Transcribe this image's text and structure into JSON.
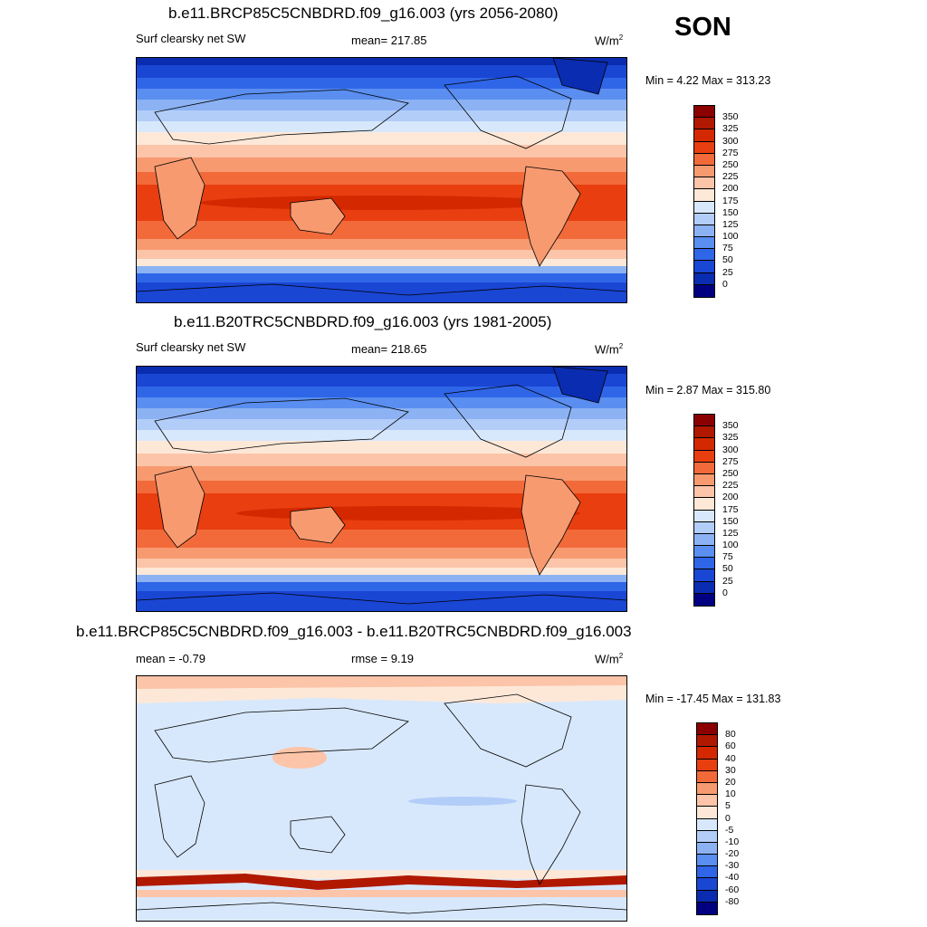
{
  "season": "SON",
  "panels": [
    {
      "title": "b.e11.BRCP85C5CNBDRD.f09_g16.003 (yrs 2056-2080)",
      "variable": "Surf clearsky net SW",
      "stat": "mean= 217.85",
      "units": "W/m",
      "units_exp": "2",
      "minmax": "Min =   4.22 Max = 313.23"
    },
    {
      "title": "b.e11.B20TRC5CNBDRD.f09_g16.003 (yrs 1981-2005)",
      "variable": "Surf clearsky net SW",
      "stat": "mean= 218.65",
      "units": "W/m",
      "units_exp": "2",
      "minmax": "Min =   2.87 Max = 315.80"
    },
    {
      "title": "b.e11.BRCP85C5CNBDRD.f09_g16.003 - b.e11.B20TRC5CNBDRD.f09_g16.003",
      "mean_label": "mean =  -0.79",
      "rmse_label": "rmse =   9.19",
      "units": "W/m",
      "units_exp": "2",
      "minmax": "Min = -17.45 Max = 131.83"
    }
  ],
  "colorbar_abs": {
    "labels": [
      "350",
      "325",
      "300",
      "275",
      "250",
      "225",
      "200",
      "175",
      "150",
      "125",
      "100",
      "75",
      "50",
      "25",
      "0"
    ],
    "colors": [
      "#8b0000",
      "#b01800",
      "#d42800",
      "#e83e10",
      "#f26a3a",
      "#f89a70",
      "#fcc4a8",
      "#fde8d8",
      "#d8e8fc",
      "#b2cdf8",
      "#8cb2f4",
      "#5a8ef0",
      "#2f66e8",
      "#1a46d4",
      "#0a2cb0",
      "#000080"
    ]
  },
  "colorbar_diff": {
    "labels": [
      "80",
      "60",
      "40",
      "30",
      "20",
      "10",
      "5",
      "0",
      "-5",
      "-10",
      "-20",
      "-30",
      "-40",
      "-60",
      "-80"
    ],
    "colors": [
      "#8b0000",
      "#b01800",
      "#d42800",
      "#e83e10",
      "#f26a3a",
      "#f89a70",
      "#fcc4a8",
      "#fde8d8",
      "#d8e8fc",
      "#b2cdf8",
      "#8cb2f4",
      "#5a8ef0",
      "#2f66e8",
      "#1a46d4",
      "#0a2cb0",
      "#000080"
    ]
  }
}
